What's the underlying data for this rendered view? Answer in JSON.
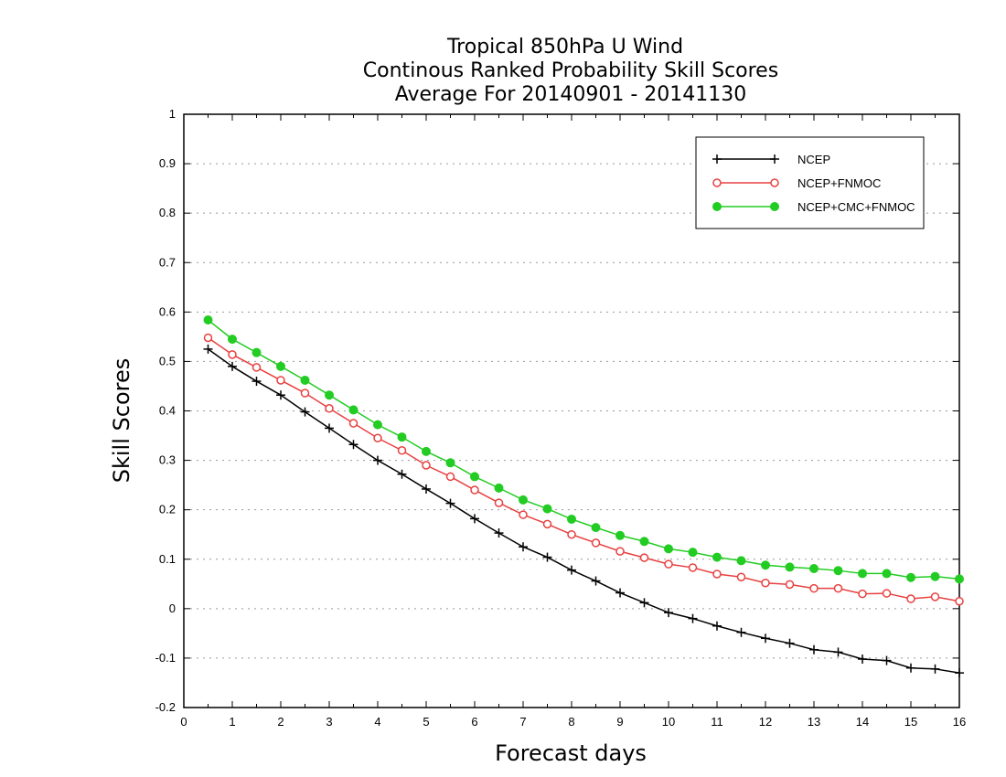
{
  "chart_data": {
    "type": "line",
    "title_lines": [
      "Tropical 850hPa U Wind",
      "Continous Ranked Probability Skill Scores",
      "Average For 20140901 - 20141130"
    ],
    "xlabel": "Forecast days",
    "ylabel": "Skill Scores",
    "xlim": [
      0,
      16
    ],
    "ylim": [
      -0.2,
      1
    ],
    "xticks": [
      0,
      1,
      2,
      3,
      4,
      5,
      6,
      7,
      8,
      9,
      10,
      11,
      12,
      13,
      14,
      15,
      16
    ],
    "xtick_labels": [
      "0",
      "1",
      "2",
      "3",
      "4",
      "5",
      "6",
      "7",
      "8",
      "9",
      "10",
      "11",
      "12",
      "13",
      "14",
      "15",
      "16"
    ],
    "yticks": [
      -0.2,
      -0.1,
      0,
      0.1,
      0.2,
      0.3,
      0.4,
      0.5,
      0.6,
      0.7,
      0.8,
      0.9,
      1
    ],
    "ytick_labels": [
      "-0.2",
      "-0.1",
      "0",
      "0.1",
      "0.2",
      "0.3",
      "0.4",
      "0.5",
      "0.6",
      "0.7",
      "0.8",
      "0.9",
      "1"
    ],
    "grid": "horizontal dotted",
    "legend_position": "top-right",
    "x": [
      0.5,
      1,
      1.5,
      2,
      2.5,
      3,
      3.5,
      4,
      4.5,
      5,
      5.5,
      6,
      6.5,
      7,
      7.5,
      8,
      8.5,
      9,
      9.5,
      10,
      10.5,
      11,
      11.5,
      12,
      12.5,
      13,
      13.5,
      14,
      14.5,
      15,
      15.5,
      16
    ],
    "series": [
      {
        "name": "NCEP",
        "color": "#000000",
        "marker": "plus",
        "values": [
          0.525,
          0.49,
          0.46,
          0.432,
          0.398,
          0.365,
          0.332,
          0.3,
          0.272,
          0.242,
          0.213,
          0.182,
          0.153,
          0.125,
          0.104,
          0.078,
          0.056,
          0.032,
          0.012,
          -0.008,
          -0.02,
          -0.035,
          -0.048,
          -0.06,
          -0.07,
          -0.083,
          -0.088,
          -0.102,
          -0.105,
          -0.12,
          -0.122,
          -0.13
        ]
      },
      {
        "name": "NCEP+FNMOC",
        "color": "#e84040",
        "marker": "open-circle",
        "values": [
          0.548,
          0.514,
          0.488,
          0.462,
          0.436,
          0.405,
          0.375,
          0.345,
          0.32,
          0.29,
          0.267,
          0.24,
          0.214,
          0.19,
          0.171,
          0.15,
          0.133,
          0.116,
          0.103,
          0.09,
          0.083,
          0.07,
          0.064,
          0.052,
          0.049,
          0.041,
          0.041,
          0.03,
          0.031,
          0.02,
          0.024,
          0.015
        ]
      },
      {
        "name": "NCEP+CMC+FNMOC",
        "color": "#22cc22",
        "marker": "filled-circle",
        "values": [
          0.584,
          0.545,
          0.518,
          0.49,
          0.462,
          0.432,
          0.402,
          0.372,
          0.347,
          0.318,
          0.295,
          0.267,
          0.244,
          0.22,
          0.202,
          0.181,
          0.164,
          0.148,
          0.136,
          0.121,
          0.114,
          0.104,
          0.097,
          0.088,
          0.084,
          0.081,
          0.077,
          0.071,
          0.071,
          0.063,
          0.065,
          0.06
        ]
      }
    ]
  }
}
